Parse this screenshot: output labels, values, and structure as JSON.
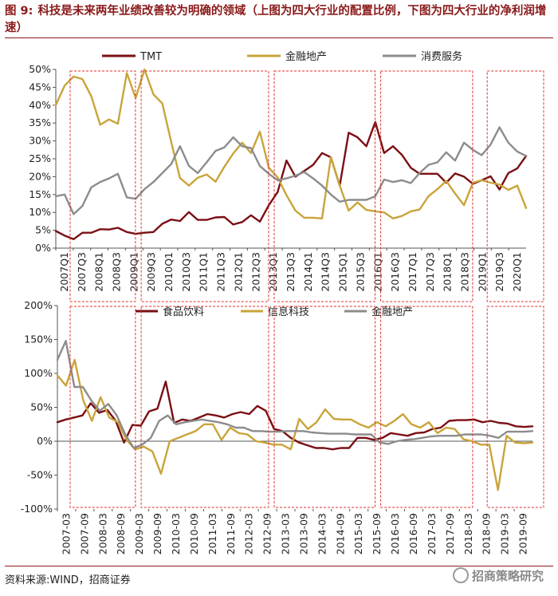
{
  "caption": {
    "label": "图 9:",
    "text": "科技是未来两年业绩改善较为明确的领域（上图为四大行业的配置比例，下图为四大行业的净利润增速）"
  },
  "colors": {
    "series1": "#7a0f14",
    "series2": "#c9a43a",
    "series3": "#8c8c8c",
    "box": "#e0302a"
  },
  "chart_data": [
    {
      "type": "line",
      "title": "四大行业的配置比例",
      "legend": [
        "TMT",
        "金融地产",
        "消费服务"
      ],
      "legend_position": "top",
      "ylim": [
        0,
        50
      ],
      "yticks": [
        "0%",
        "5%",
        "10%",
        "15%",
        "20%",
        "25%",
        "30%",
        "35%",
        "40%",
        "45%",
        "50%"
      ],
      "x_tick_labels": [
        "2007Q1",
        "2007Q3",
        "2008Q1",
        "2008Q3",
        "2009Q1",
        "2009Q3",
        "2010Q1",
        "2010Q3",
        "2011Q1",
        "2011Q3",
        "2012Q1",
        "2012Q3",
        "2013Q1",
        "2013Q3",
        "2014Q1",
        "2014Q3",
        "2015Q1",
        "2015Q3",
        "2016Q1",
        "2016Q3",
        "2017Q1",
        "2017Q3",
        "2018Q1",
        "2018Q3",
        "2019Q1",
        "2019Q3",
        "2020Q1"
      ],
      "highlight_ranges": [
        [
          0,
          7
        ],
        [
          8,
          22
        ],
        [
          23,
          34
        ],
        [
          35,
          45
        ],
        [
          47,
          53
        ]
      ],
      "series": [
        {
          "name": "TMT",
          "values": [
            4.8,
            3.5,
            2.5,
            4.3,
            4.3,
            5.3,
            5.2,
            5.7,
            4.5,
            4.0,
            4.3,
            4.5,
            6.8,
            8.0,
            7.6,
            10.1,
            7.9,
            7.9,
            8.6,
            8.7,
            6.6,
            7.3,
            9.2,
            7.4,
            12.0,
            15.7,
            24.5,
            20.0,
            21.6,
            23.3,
            26.6,
            25.4,
            17.5,
            32.3,
            31.0,
            28.5,
            35.3,
            26.6,
            28.5,
            26.1,
            22.5,
            20.8,
            20.8,
            20.8,
            18.3,
            20.9,
            20.0,
            18.0,
            19.0,
            20.1,
            16.4,
            21.0,
            22.3,
            25.8
          ]
        },
        {
          "name": "金融地产",
          "values": [
            40.0,
            45.5,
            48.0,
            47.3,
            42.5,
            34.5,
            36.0,
            34.8,
            49.0,
            42.0,
            50.0,
            43.0,
            40.5,
            29.8,
            19.6,
            17.5,
            19.7,
            20.6,
            18.6,
            22.8,
            26.5,
            29.5,
            26.6,
            32.6,
            22.5,
            19.8,
            14.8,
            10.5,
            8.5,
            8.5,
            8.3,
            25.5,
            17.5,
            10.5,
            12.8,
            10.7,
            10.3,
            10.0,
            8.3,
            9.0,
            10.3,
            10.8,
            14.5,
            16.5,
            18.8,
            15.3,
            12.0,
            18.3,
            19.0,
            18.3,
            17.8,
            16.3,
            17.5,
            11.2
          ]
        },
        {
          "name": "消费服务",
          "values": [
            14.5,
            15.0,
            9.5,
            11.8,
            17.0,
            18.5,
            19.5,
            20.8,
            14.2,
            13.8,
            16.5,
            18.5,
            21.0,
            23.5,
            28.5,
            23.0,
            21.0,
            24.0,
            27.2,
            28.2,
            31.0,
            28.5,
            28.0,
            23.0,
            20.8,
            19.0,
            19.5,
            20.3,
            21.3,
            19.5,
            17.5,
            15.0,
            13.0,
            13.5,
            13.5,
            13.5,
            14.5,
            19.2,
            18.5,
            19.0,
            18.2,
            21.0,
            23.3,
            24.0,
            26.8,
            24.5,
            29.5,
            27.5,
            26.0,
            29.0,
            33.8,
            29.5,
            27.0,
            25.8
          ]
        }
      ]
    },
    {
      "type": "line",
      "title": "四大行业的净利润增速",
      "legend": [
        "食品饮料",
        "信息科技",
        "金融地产"
      ],
      "legend_position": "top",
      "ylim": [
        -100,
        200
      ],
      "yticks": [
        "-100%",
        "-50%",
        "0%",
        "50%",
        "100%",
        "150%",
        "200%"
      ],
      "x_tick_labels": [
        "2007-03",
        "2007-09",
        "2008-03",
        "2008-09",
        "2009-03",
        "2009-09",
        "2010-03",
        "2010-09",
        "2011-03",
        "2011-09",
        "2012-03",
        "2012-09",
        "2013-03",
        "2013-09",
        "2014-03",
        "2014-09",
        "2015-03",
        "2015-09",
        "2016-03",
        "2016-09",
        "2017-03",
        "2017-09",
        "2018-03",
        "2018-09",
        "2019-03",
        "2019-09"
      ],
      "highlight_ranges": [
        [
          0,
          7
        ],
        [
          8,
          22
        ],
        [
          23,
          34
        ],
        [
          35,
          45
        ],
        [
          47,
          53
        ]
      ],
      "series": [
        {
          "name": "食品饮料",
          "values": [
            28,
            32,
            35,
            38,
            56,
            42,
            46,
            30,
            -2,
            24,
            23,
            44,
            48,
            88,
            27,
            32,
            30,
            35,
            40,
            38,
            35,
            40,
            43,
            40,
            52,
            45,
            18,
            15,
            5,
            -2,
            -6,
            -10,
            -10,
            -12,
            -10,
            -10,
            5,
            5,
            2,
            5,
            12,
            10,
            8,
            12,
            13,
            18,
            20,
            30,
            31,
            31,
            32,
            28,
            30,
            27,
            26,
            22,
            21,
            22
          ]
        },
        {
          "name": "信息科技",
          "values": [
            97,
            82,
            120,
            60,
            30,
            65,
            35,
            28,
            2,
            -12,
            -8,
            -15,
            -48,
            0,
            5,
            10,
            15,
            25,
            25,
            2,
            20,
            12,
            10,
            0,
            -2,
            -5,
            -5,
            -12,
            33,
            18,
            28,
            47,
            33,
            32,
            32,
            25,
            20,
            28,
            22,
            30,
            40,
            25,
            20,
            28,
            12,
            20,
            18,
            3,
            0,
            -5,
            -5,
            -72,
            8,
            -2,
            -3,
            -2
          ]
        },
        {
          "name": "金融地产",
          "values": [
            120,
            148,
            80,
            80,
            60,
            45,
            55,
            38,
            10,
            -10,
            -5,
            5,
            30,
            38,
            25,
            28,
            30,
            32,
            30,
            28,
            25,
            20,
            20,
            15,
            15,
            14,
            14,
            15,
            15,
            15,
            13,
            12,
            11,
            11,
            11,
            10,
            10,
            10,
            -2,
            -4,
            0,
            2,
            3,
            5,
            7,
            8,
            8,
            8,
            10,
            10,
            10,
            8,
            5,
            14,
            14,
            14,
            15
          ]
        }
      ]
    }
  ],
  "footer": {
    "source": "资料来源:WIND，招商证券",
    "watermark": "招商策略研究"
  }
}
